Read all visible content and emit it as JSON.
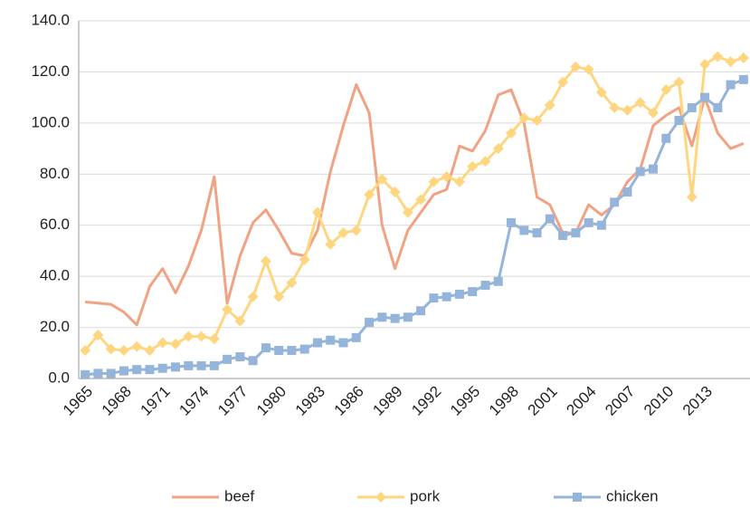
{
  "chart_data": {
    "type": "line",
    "categories": [
      "1965",
      null,
      null,
      "1968",
      null,
      null,
      "1971",
      null,
      null,
      "1974",
      null,
      null,
      "1977",
      null,
      null,
      "1980",
      null,
      null,
      "1983",
      null,
      null,
      "1986",
      null,
      null,
      "1989",
      null,
      null,
      "1992",
      null,
      null,
      "1995",
      null,
      null,
      "1998",
      null,
      null,
      "2001",
      null,
      null,
      "2004",
      null,
      null,
      "2007",
      null,
      null,
      "2010",
      null,
      null,
      "2013",
      null,
      null,
      null
    ],
    "series": [
      {
        "name": "beef",
        "color": "#f1a283",
        "marker": "none",
        "values": [
          30,
          29.5,
          29,
          26,
          21,
          36,
          43,
          33.5,
          44,
          58,
          79,
          29.5,
          48,
          61,
          66,
          58,
          49,
          48,
          58,
          81,
          99,
          115,
          104,
          60,
          43,
          58,
          65,
          72,
          74,
          91,
          89,
          97,
          111,
          113,
          100,
          71,
          68,
          57,
          57,
          68,
          64,
          68,
          77,
          82,
          99,
          103,
          106,
          91,
          110,
          96,
          90,
          92
        ]
      },
      {
        "name": "pork",
        "color": "#ffd680",
        "marker": "diamond",
        "values": [
          11,
          17,
          11.5,
          11,
          12.5,
          11,
          14,
          13.5,
          16.5,
          16.5,
          15.5,
          27,
          22.5,
          32,
          46,
          32,
          37.5,
          46.5,
          65,
          52.5,
          57,
          58,
          72,
          78,
          73,
          65,
          70,
          77,
          79,
          77,
          83,
          85,
          90,
          96,
          102,
          101,
          107,
          116,
          122,
          121,
          112,
          106,
          105,
          108,
          104,
          113,
          116,
          71,
          123,
          126,
          124,
          125.5
        ]
      },
      {
        "name": "chicken",
        "color": "#95b4da",
        "marker": "square",
        "values": [
          1.5,
          2,
          2,
          3,
          3.5,
          3.5,
          4,
          4.5,
          5,
          5,
          5,
          7.5,
          8.5,
          7,
          12,
          11,
          11,
          11.5,
          14,
          15,
          14,
          16,
          22,
          24,
          23.5,
          24,
          26.5,
          31.5,
          32,
          33,
          34,
          36.5,
          38,
          61,
          58,
          57,
          62.5,
          56,
          57,
          61,
          60,
          69,
          73,
          81,
          82,
          94,
          101,
          106,
          110,
          106,
          115,
          117
        ]
      }
    ],
    "ylim": [
      0,
      140
    ],
    "yticks": [
      {
        "value": 0,
        "label": "0.0"
      },
      {
        "value": 20,
        "label": "20.0"
      },
      {
        "value": 40,
        "label": "40.0"
      },
      {
        "value": 60,
        "label": "60.0"
      },
      {
        "value": 80,
        "label": "80.0"
      },
      {
        "value": 100,
        "label": "100.0"
      },
      {
        "value": 120,
        "label": "120.0"
      },
      {
        "value": 140,
        "label": "140.0"
      }
    ],
    "grid": true,
    "legend": "bottom"
  }
}
